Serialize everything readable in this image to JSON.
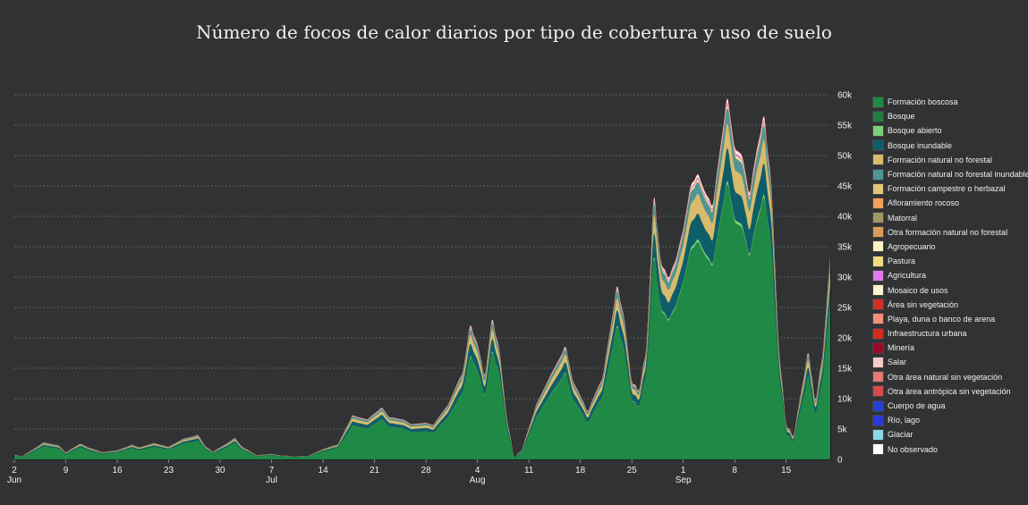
{
  "chart_data": {
    "type": "area",
    "title": "Número de focos de calor diarios por tipo de cobertura y uso de suelo",
    "x_ticks": [
      {
        "day": 0,
        "label": "2",
        "sub": "Jun"
      },
      {
        "day": 7,
        "label": "9",
        "sub": ""
      },
      {
        "day": 14,
        "label": "16",
        "sub": ""
      },
      {
        "day": 21,
        "label": "23",
        "sub": ""
      },
      {
        "day": 28,
        "label": "30",
        "sub": ""
      },
      {
        "day": 35,
        "label": "7",
        "sub": "Jul"
      },
      {
        "day": 42,
        "label": "14",
        "sub": ""
      },
      {
        "day": 49,
        "label": "21",
        "sub": ""
      },
      {
        "day": 56,
        "label": "28",
        "sub": ""
      },
      {
        "day": 63,
        "label": "4",
        "sub": "Aug"
      },
      {
        "day": 70,
        "label": "11",
        "sub": ""
      },
      {
        "day": 77,
        "label": "18",
        "sub": ""
      },
      {
        "day": 84,
        "label": "25",
        "sub": ""
      },
      {
        "day": 91,
        "label": "1",
        "sub": "Sep"
      },
      {
        "day": 98,
        "label": "8",
        "sub": ""
      },
      {
        "day": 105,
        "label": "15",
        "sub": ""
      }
    ],
    "y_ticks": [
      {
        "value": 0,
        "label": "0"
      },
      {
        "value": 5000,
        "label": "5k"
      },
      {
        "value": 10000,
        "label": "10k"
      },
      {
        "value": 15000,
        "label": "15k"
      },
      {
        "value": 20000,
        "label": "20k"
      },
      {
        "value": 25000,
        "label": "25k"
      },
      {
        "value": 30000,
        "label": "30k"
      },
      {
        "value": 35000,
        "label": "35k"
      },
      {
        "value": 40000,
        "label": "40k"
      },
      {
        "value": 45000,
        "label": "45k"
      },
      {
        "value": 50000,
        "label": "50k"
      },
      {
        "value": 55000,
        "label": "55k"
      },
      {
        "value": 60000,
        "label": "60k"
      }
    ],
    "x_range": [
      0,
      111
    ],
    "ylim": [
      0,
      60000
    ],
    "y_axis_side": "right",
    "grid": true,
    "legend_position": "right",
    "totals": [
      [
        0,
        800
      ],
      [
        1,
        500
      ],
      [
        3,
        2000
      ],
      [
        4,
        2800
      ],
      [
        6,
        2300
      ],
      [
        7,
        1200
      ],
      [
        9,
        2600
      ],
      [
        10,
        2000
      ],
      [
        12,
        1200
      ],
      [
        14,
        1500
      ],
      [
        16,
        2400
      ],
      [
        17,
        2000
      ],
      [
        19,
        2700
      ],
      [
        21,
        2100
      ],
      [
        23,
        3400
      ],
      [
        25,
        4000
      ],
      [
        26,
        2200
      ],
      [
        27,
        1300
      ],
      [
        29,
        2700
      ],
      [
        30,
        3500
      ],
      [
        31,
        2100
      ],
      [
        33,
        700
      ],
      [
        35,
        900
      ],
      [
        36,
        700
      ],
      [
        38,
        500
      ],
      [
        40,
        600
      ],
      [
        42,
        1700
      ],
      [
        44,
        2500
      ],
      [
        46,
        7200
      ],
      [
        48,
        6600
      ],
      [
        50,
        8500
      ],
      [
        51,
        7000
      ],
      [
        53,
        6500
      ],
      [
        54,
        5800
      ],
      [
        56,
        6000
      ],
      [
        57,
        5700
      ],
      [
        59,
        9000
      ],
      [
        61,
        14500
      ],
      [
        62,
        22000
      ],
      [
        63,
        19000
      ],
      [
        64,
        14000
      ],
      [
        65,
        23000
      ],
      [
        66,
        18000
      ],
      [
        67,
        7000
      ],
      [
        68,
        500
      ],
      [
        69,
        1500
      ],
      [
        71,
        9000
      ],
      [
        73,
        14000
      ],
      [
        75,
        18500
      ],
      [
        76,
        13000
      ],
      [
        78,
        8000
      ],
      [
        80,
        13500
      ],
      [
        82,
        28500
      ],
      [
        83,
        23000
      ],
      [
        84,
        13000
      ],
      [
        85,
        11500
      ],
      [
        86,
        19000
      ],
      [
        87,
        43000
      ],
      [
        88,
        32500
      ],
      [
        89,
        30000
      ],
      [
        90,
        33000
      ],
      [
        91,
        38000
      ],
      [
        92,
        45000
      ],
      [
        93,
        47000
      ],
      [
        94,
        44000
      ],
      [
        95,
        42000
      ],
      [
        96,
        51000
      ],
      [
        97,
        59500
      ],
      [
        98,
        51500
      ],
      [
        99,
        50000
      ],
      [
        100,
        44000
      ],
      [
        101,
        51000
      ],
      [
        102,
        56500
      ],
      [
        103,
        45000
      ],
      [
        104,
        19000
      ],
      [
        105,
        6000
      ],
      [
        106,
        4000
      ],
      [
        107,
        11000
      ],
      [
        108,
        17500
      ],
      [
        109,
        10000
      ],
      [
        110,
        18000
      ],
      [
        111,
        33500
      ]
    ],
    "shares": [
      0.76,
      0.0,
      0.01,
      0.09,
      0.07,
      0.04,
      0.0,
      0.0,
      0.0,
      0.0,
      0.005,
      0.005,
      0.007,
      0.01,
      0.002,
      0.0,
      0.0,
      0.0,
      0.0,
      0.0,
      0.0,
      0.001,
      0.0,
      0.0,
      0.0
    ],
    "series": [
      {
        "name": "Formación boscosa",
        "color": "#1e8a46"
      },
      {
        "name": "Bosque",
        "color": "#237d3f"
      },
      {
        "name": "Bosque abierto",
        "color": "#7ccf78"
      },
      {
        "name": "Bosque inundable",
        "color": "#0e5e6a"
      },
      {
        "name": "Formación natural no forestal",
        "color": "#d8bb6c"
      },
      {
        "name": "Formación natural no forestal inundable",
        "color": "#4f9595"
      },
      {
        "name": "Formación campestre o herbazal",
        "color": "#e3c57c"
      },
      {
        "name": "Afloramiento rocoso",
        "color": "#f5a15a"
      },
      {
        "name": "Matorral",
        "color": "#a29763"
      },
      {
        "name": "Otra formación natural no forestal",
        "color": "#d99b58"
      },
      {
        "name": "Agropecuario",
        "color": "#fff3c4"
      },
      {
        "name": "Pastura",
        "color": "#f0dc7e"
      },
      {
        "name": "Agricultura",
        "color": "#e079e9"
      },
      {
        "name": "Mosaico de usos",
        "color": "#fff3d1"
      },
      {
        "name": "Área sin vegetación",
        "color": "#d32f25"
      },
      {
        "name": "Playa, duna o banco de arena",
        "color": "#f48f7a"
      },
      {
        "name": "Infraestructura urbana",
        "color": "#d52c22"
      },
      {
        "name": "Minería",
        "color": "#9b0a2b"
      },
      {
        "name": "Salar",
        "color": "#f7c9c7"
      },
      {
        "name": "Otra área natural sin vegetación",
        "color": "#e67876"
      },
      {
        "name": "Otra área antrópica sin vegetación",
        "color": "#d9494a"
      },
      {
        "name": "Cuerpo de agua",
        "color": "#2442d0"
      },
      {
        "name": "Río, lago",
        "color": "#2a3ad4"
      },
      {
        "name": "Glaciar",
        "color": "#8ad8e4"
      },
      {
        "name": "No observado",
        "color": "#ffffff"
      }
    ]
  }
}
